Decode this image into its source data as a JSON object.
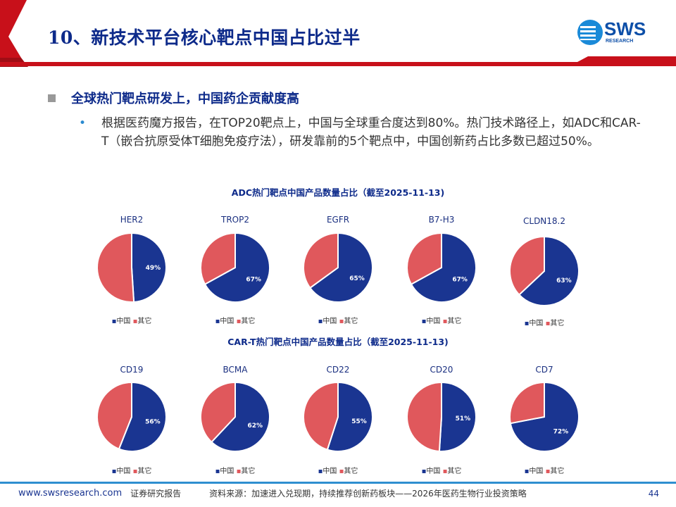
{
  "header": {
    "title": "10、新技术平台核心靶点中国占比过半",
    "logo": "SWS RESEARCH"
  },
  "section": {
    "heading": "全球热门靶点研发上，中国药企贡献度高",
    "bullet": "根据医药魔方报告，在TOP20靶点上，中国与全球重合度达到80%。热门技术路径上，如ADC和CAR-T（嵌合抗原受体T细胞免疫疗法），研发靠前的5个靶点中，中国创新药占比多数已超过50%。"
  },
  "colors": {
    "china": "#1a3591",
    "other": "#e0585c",
    "title": "#0d2a8a"
  },
  "legend": {
    "china": "中国",
    "other": "其它"
  },
  "chart_data": [
    {
      "type": "pie",
      "title": "ADC热门靶点中国产品数量占比（截至2025-11-13)",
      "legend": [
        "中国",
        "其它"
      ],
      "charts": [
        {
          "label": "HER2",
          "china_pct": 49
        },
        {
          "label": "TROP2",
          "china_pct": 67
        },
        {
          "label": "EGFR",
          "china_pct": 65
        },
        {
          "label": "B7-H3",
          "china_pct": 67
        },
        {
          "label": "CLDN18.2",
          "china_pct": 63
        }
      ]
    },
    {
      "type": "pie",
      "title": "CAR-T热门靶点中国产品数量占比（截至2025-11-13)",
      "legend": [
        "中国",
        "其它"
      ],
      "charts": [
        {
          "label": "CD19",
          "china_pct": 56
        },
        {
          "label": "BCMA",
          "china_pct": 62
        },
        {
          "label": "CD22",
          "china_pct": 55
        },
        {
          "label": "CD20",
          "china_pct": 51
        },
        {
          "label": "CD7",
          "china_pct": 72
        }
      ]
    }
  ],
  "footer": {
    "url": "www.swsresearch.com",
    "type": "证券研究报告",
    "source": "资料来源：加速进入兑现期，持续推荐创新药板块——2026年医药生物行业投资策略",
    "page": "44"
  }
}
